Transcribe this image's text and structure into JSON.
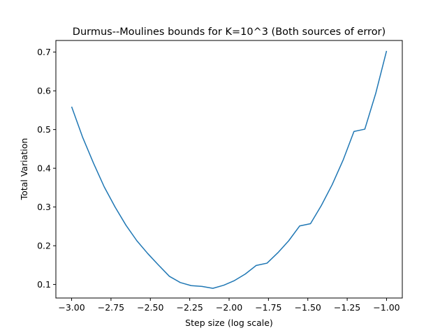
{
  "chart_data": {
    "type": "line",
    "title": "Durmus--Moulines bounds for K=10^3 (Both sources of error)",
    "xlabel": "Step size (log scale)",
    "ylabel": "Total Variation",
    "xlim": [
      -3.1,
      -0.9
    ],
    "ylim": [
      0.065,
      0.73
    ],
    "grid": false,
    "x_ticks": [
      -3.0,
      -2.75,
      -2.5,
      -2.25,
      -2.0,
      -1.75,
      -1.5,
      -1.25,
      -1.0
    ],
    "x_tick_labels": [
      "−3.00",
      "−2.75",
      "−2.50",
      "−2.25",
      "−2.00",
      "−1.75",
      "−1.50",
      "−1.25",
      "−1.00"
    ],
    "y_ticks": [
      0.1,
      0.2,
      0.3,
      0.4,
      0.5,
      0.6,
      0.7
    ],
    "y_tick_labels": [
      "0.1",
      "0.2",
      "0.3",
      "0.4",
      "0.5",
      "0.6",
      "0.7"
    ],
    "series": [
      {
        "color": "#1f77b4",
        "x": [
          -3.0,
          -2.931,
          -2.862,
          -2.793,
          -2.724,
          -2.655,
          -2.586,
          -2.517,
          -2.448,
          -2.379,
          -2.31,
          -2.241,
          -2.172,
          -2.103,
          -2.034,
          -1.966,
          -1.897,
          -1.828,
          -1.759,
          -1.69,
          -1.621,
          -1.552,
          -1.483,
          -1.414,
          -1.345,
          -1.276,
          -1.207,
          -1.138,
          -1.069,
          -1.0
        ],
        "y": [
          0.559,
          0.481,
          0.414,
          0.352,
          0.3,
          0.253,
          0.213,
          0.18,
          0.15,
          0.121,
          0.105,
          0.097,
          0.095,
          0.09,
          0.098,
          0.11,
          0.127,
          0.149,
          0.155,
          0.182,
          0.213,
          0.251,
          0.257,
          0.304,
          0.358,
          0.421,
          0.495,
          0.501,
          0.593,
          0.703
        ]
      }
    ]
  }
}
